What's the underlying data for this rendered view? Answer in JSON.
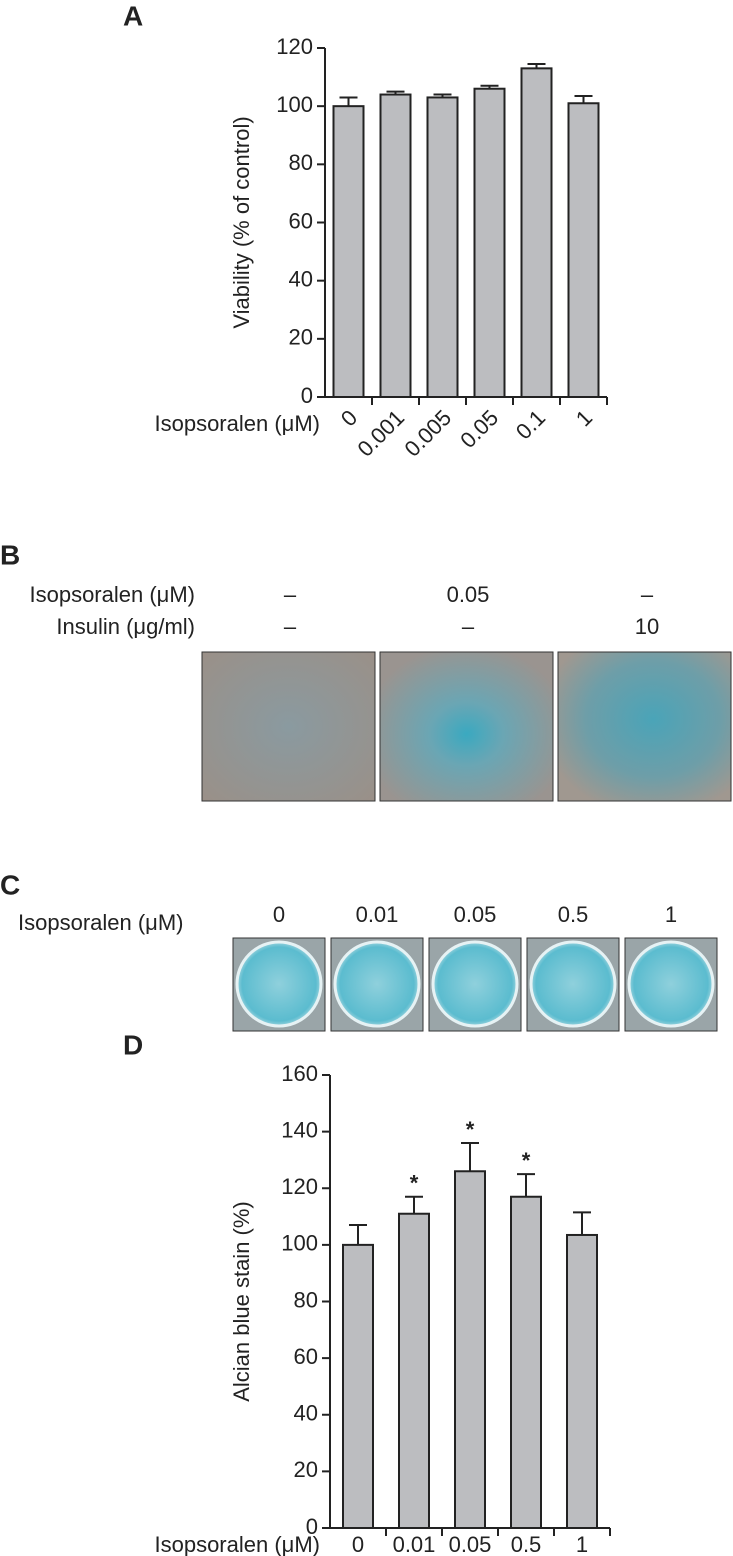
{
  "chart_data": [
    {
      "type": "bar",
      "title": "A",
      "y_label": "Viability (% of control)",
      "x_label": "Isopsoralen (μM)",
      "categories": [
        "0",
        "0.001",
        "0.005",
        "0.05",
        "0.1",
        "1"
      ],
      "values": [
        100,
        104,
        103,
        106,
        113,
        101
      ],
      "errors": [
        3,
        1,
        1,
        1,
        1.5,
        2.5
      ],
      "color": "#bcbdc0",
      "ylim": [
        0,
        120
      ],
      "yticks": [
        0,
        20,
        40,
        60,
        80,
        100,
        120
      ],
      "rotate_labels": true
    },
    {
      "type": "bar",
      "title": "D",
      "y_label": "Alcian blue stain (%)",
      "x_label": "Isopsoralen (μM)",
      "categories": [
        "0",
        "0.01",
        "0.05",
        "0.5",
        "1"
      ],
      "values": [
        100,
        111,
        126,
        117,
        103.5
      ],
      "errors": [
        7,
        6,
        10,
        8,
        8
      ],
      "significance": [
        null,
        "*",
        "*",
        "*",
        null
      ],
      "color": "#bcbdc0",
      "ylim": [
        0,
        160
      ],
      "yticks": [
        0,
        20,
        40,
        60,
        80,
        100,
        120,
        140,
        160
      ],
      "rotate_labels": false
    }
  ],
  "panel_b": {
    "title": "B",
    "rows": [
      {
        "label": "Isopsoralen (μM)",
        "values": [
          "–",
          "0.05",
          "–"
        ]
      },
      {
        "label": "Insulin (μg/ml)",
        "values": [
          "–",
          "–",
          "10"
        ]
      }
    ]
  },
  "panel_c": {
    "title": "C",
    "label": "Isopsoralen (μM)",
    "values": [
      "0",
      "0.01",
      "0.05",
      "0.5",
      "1"
    ]
  }
}
